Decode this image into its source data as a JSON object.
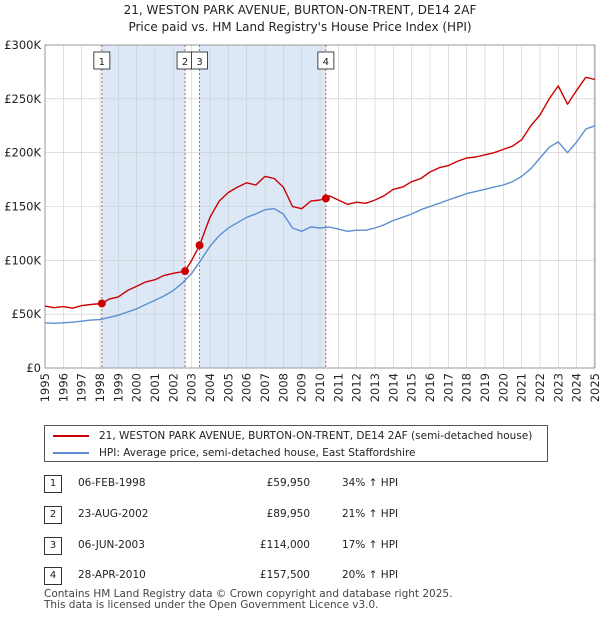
{
  "title": "21, WESTON PARK AVENUE, BURTON-ON-TRENT, DE14 2AF",
  "subtitle": "Price paid vs. HM Land Registry's House Price Index (HPI)",
  "colors": {
    "property": "#cc0000",
    "hpi": "#5b8fd0",
    "shade": "#dde8f7",
    "marker_line": "#cc3333"
  },
  "chart_data": {
    "type": "line",
    "title": "21, WESTON PARK AVENUE, BURTON-ON-TRENT, DE14 2AF",
    "subtitle": "Price paid vs. HM Land Registry's House Price Index (HPI)",
    "xlabel": "",
    "ylabel": "",
    "xlim": [
      1995,
      2025
    ],
    "ylim": [
      0,
      300000
    ],
    "x_ticks": [
      "1995",
      "1996",
      "1997",
      "1998",
      "1999",
      "2000",
      "2001",
      "2002",
      "2003",
      "2004",
      "2005",
      "2006",
      "2007",
      "2008",
      "2009",
      "2010",
      "2011",
      "2012",
      "2013",
      "2014",
      "2015",
      "2016",
      "2017",
      "2018",
      "2019",
      "2020",
      "2021",
      "2022",
      "2023",
      "2024",
      "2025"
    ],
    "y_ticks": [
      {
        "value": 0,
        "label": "£0"
      },
      {
        "value": 50000,
        "label": "£50K"
      },
      {
        "value": 100000,
        "label": "£100K"
      },
      {
        "value": 150000,
        "label": "£150K"
      },
      {
        "value": 200000,
        "label": "£200K"
      },
      {
        "value": 250000,
        "label": "£250K"
      },
      {
        "value": 300000,
        "label": "£300K"
      }
    ],
    "grid": true,
    "series": [
      {
        "name": "21, WESTON PARK AVENUE, BURTON-ON-TRENT, DE14 2AF (semi-detached house)",
        "color": "#cc0000",
        "x": [
          1995.0,
          1995.5,
          1996.0,
          1996.5,
          1997.0,
          1997.5,
          1998.1,
          1998.5,
          1999.0,
          1999.5,
          2000.0,
          2000.5,
          2001.0,
          2001.5,
          2002.0,
          2002.64,
          2003.0,
          2003.43,
          2004.0,
          2004.5,
          2005.0,
          2005.5,
          2006.0,
          2006.5,
          2007.0,
          2007.5,
          2008.0,
          2008.5,
          2009.0,
          2009.5,
          2010.0,
          2010.32,
          2010.5,
          2011.0,
          2011.5,
          2012.0,
          2012.5,
          2013.0,
          2013.5,
          2014.0,
          2014.5,
          2015.0,
          2015.5,
          2016.0,
          2016.5,
          2017.0,
          2017.5,
          2018.0,
          2018.5,
          2019.0,
          2019.5,
          2020.0,
          2020.5,
          2021.0,
          2021.5,
          2022.0,
          2022.5,
          2023.0,
          2023.5,
          2024.0,
          2024.5,
          2025.0
        ],
        "values": [
          57500,
          56000,
          57000,
          55500,
          58000,
          59000,
          59950,
          64000,
          66000,
          72000,
          76000,
          80000,
          82000,
          86000,
          88000,
          89950,
          100000,
          114000,
          140000,
          155000,
          163000,
          168000,
          172000,
          170000,
          178000,
          176000,
          168000,
          150000,
          148000,
          155000,
          156000,
          157500,
          160000,
          156000,
          152000,
          154000,
          153000,
          156000,
          160000,
          166000,
          168000,
          173000,
          176000,
          182000,
          186000,
          188000,
          192000,
          195000,
          196000,
          198000,
          200000,
          203000,
          206000,
          212000,
          225000,
          235000,
          250000,
          262000,
          245000,
          258000,
          270000,
          268000
        ]
      },
      {
        "name": "HPI: Average price, semi-detached house, East Staffordshire",
        "color": "#5b8fd0",
        "x": [
          1995.0,
          1995.5,
          1996.0,
          1996.5,
          1997.0,
          1997.5,
          1998.0,
          1998.5,
          1999.0,
          1999.5,
          2000.0,
          2000.5,
          2001.0,
          2001.5,
          2002.0,
          2002.5,
          2003.0,
          2003.5,
          2004.0,
          2004.5,
          2005.0,
          2005.5,
          2006.0,
          2006.5,
          2007.0,
          2007.5,
          2008.0,
          2008.5,
          2009.0,
          2009.5,
          2010.0,
          2010.5,
          2011.0,
          2011.5,
          2012.0,
          2012.5,
          2013.0,
          2013.5,
          2014.0,
          2014.5,
          2015.0,
          2015.5,
          2016.0,
          2016.5,
          2017.0,
          2017.5,
          2018.0,
          2018.5,
          2019.0,
          2019.5,
          2020.0,
          2020.5,
          2021.0,
          2021.5,
          2022.0,
          2022.5,
          2023.0,
          2023.5,
          2024.0,
          2024.5,
          2025.0
        ],
        "values": [
          42000,
          41500,
          42000,
          42500,
          43500,
          44500,
          45000,
          47000,
          49000,
          52000,
          55000,
          59000,
          63000,
          67000,
          72000,
          79000,
          88000,
          100000,
          113000,
          123000,
          130000,
          135000,
          140000,
          143000,
          147000,
          148000,
          143000,
          130000,
          127000,
          131000,
          130000,
          131000,
          129000,
          127000,
          128000,
          128000,
          130000,
          133000,
          137000,
          140000,
          143000,
          147000,
          150000,
          153000,
          156000,
          159000,
          162000,
          164000,
          166000,
          168000,
          170000,
          173000,
          178000,
          185000,
          195000,
          205000,
          210000,
          200000,
          210000,
          222000,
          225000
        ]
      }
    ],
    "transactions": [
      {
        "num": "1",
        "date": "06-FEB-1998",
        "x": 1998.1,
        "price": 59950,
        "price_label": "£59,950",
        "delta": "34% ↑ HPI"
      },
      {
        "num": "2",
        "date": "23-AUG-2002",
        "x": 2002.64,
        "price": 89950,
        "price_label": "£89,950",
        "delta": "21% ↑ HPI"
      },
      {
        "num": "3",
        "date": "06-JUN-2003",
        "x": 2003.43,
        "price": 114000,
        "price_label": "£114,000",
        "delta": "17% ↑ HPI"
      },
      {
        "num": "4",
        "date": "28-APR-2010",
        "x": 2010.32,
        "price": 157500,
        "price_label": "£157,500",
        "delta": "20% ↑ HPI"
      }
    ],
    "shaded_ranges": [
      [
        1998.1,
        2002.64
      ],
      [
        2003.43,
        2010.32
      ],
      [
        2024.9,
        2025.0
      ]
    ]
  },
  "legend": {
    "property_label": "21, WESTON PARK AVENUE, BURTON-ON-TRENT, DE14 2AF (semi-detached house)",
    "hpi_label": "HPI: Average price, semi-detached house, East Staffordshire"
  },
  "table": [
    {
      "num": "1",
      "date": "06-FEB-1998",
      "price": "£59,950",
      "delta": "34% ↑ HPI"
    },
    {
      "num": "2",
      "date": "23-AUG-2002",
      "price": "£89,950",
      "delta": "21% ↑ HPI"
    },
    {
      "num": "3",
      "date": "06-JUN-2003",
      "price": "£114,000",
      "delta": "17% ↑ HPI"
    },
    {
      "num": "4",
      "date": "28-APR-2010",
      "price": "£157,500",
      "delta": "20% ↑ HPI"
    }
  ],
  "footer": {
    "line1": "Contains HM Land Registry data © Crown copyright and database right 2025.",
    "line2": "This data is licensed under the Open Government Licence v3.0."
  }
}
